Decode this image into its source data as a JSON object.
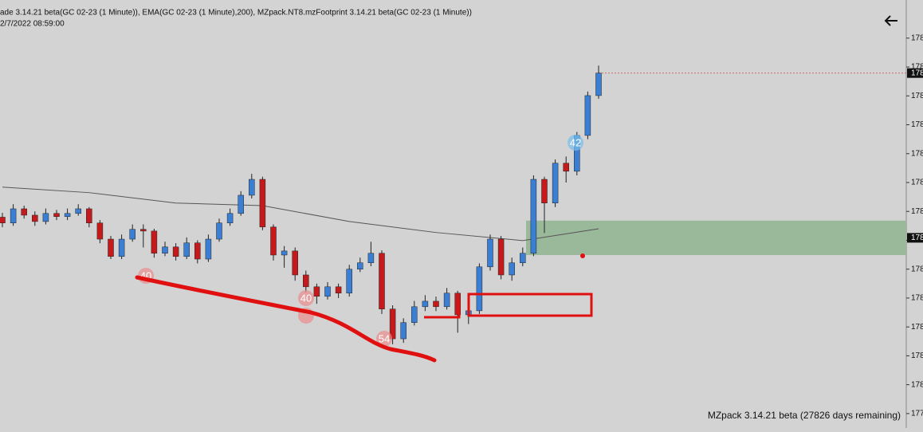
{
  "chart_data": {
    "type": "candlestick",
    "header": "ade 3.14.21 beta(GC 02-23 (1 Minute)), EMA(GC 02-23 (1 Minute),200), MZpack.NT8.mzFootprint 3.14.21 beta(GC 02-23 (1 Minute))",
    "timestamp": "2/7/2022 08:59:00",
    "footer": "MZpack 3.14.21 beta  (27826 days remaining)",
    "up_color": "#3b7fd4",
    "down_color": "#c41a1c",
    "open": [
      1785.8,
      1785.6,
      1786.09,
      1785.87,
      1785.65,
      1785.93,
      1785.82,
      1785.93,
      1786.09,
      1785.6,
      1785.04,
      1784.44,
      1785.04,
      1785.38,
      1785.32,
      1784.55,
      1784.77,
      1784.44,
      1784.91,
      1784.35,
      1785.04,
      1785.6,
      1785.93,
      1786.56,
      1787.11,
      1785.46,
      1784.49,
      1784.63,
      1783.8,
      1783.39,
      1783.06,
      1783.39,
      1783.17,
      1784.0,
      1784.22,
      1784.55,
      1782.62,
      1781.59,
      1782.15,
      1782.7,
      1782.89,
      1782.7,
      1783.17,
      1782.42,
      1782.56,
      1784.08,
      1785.04,
      1783.8,
      1784.22,
      1784.55,
      1787.11,
      1786.29,
      1787.67,
      1787.39,
      1788.63,
      1790.01
    ],
    "high": [
      1785.95,
      1786.25,
      1786.2,
      1786.0,
      1786.1,
      1786.05,
      1786.1,
      1786.25,
      1786.15,
      1785.7,
      1785.15,
      1785.2,
      1785.55,
      1785.55,
      1785.4,
      1784.95,
      1784.9,
      1785.1,
      1785.0,
      1785.2,
      1785.75,
      1786.1,
      1786.7,
      1787.3,
      1787.2,
      1785.55,
      1784.8,
      1784.75,
      1783.95,
      1783.5,
      1783.55,
      1783.5,
      1784.15,
      1784.4,
      1784.95,
      1784.65,
      1782.75,
      1782.3,
      1782.9,
      1783.1,
      1783.05,
      1783.35,
      1783.25,
      1782.75,
      1784.2,
      1785.2,
      1785.15,
      1784.4,
      1784.75,
      1787.25,
      1787.2,
      1787.8,
      1787.9,
      1788.75,
      1790.15,
      1791.05
    ],
    "low": [
      1785.45,
      1785.5,
      1785.75,
      1785.5,
      1785.55,
      1785.7,
      1785.7,
      1785.85,
      1785.45,
      1784.9,
      1784.35,
      1784.35,
      1784.95,
      1784.75,
      1784.4,
      1784.45,
      1784.3,
      1784.35,
      1784.2,
      1784.25,
      1784.95,
      1785.5,
      1785.85,
      1786.45,
      1785.35,
      1784.3,
      1784.05,
      1783.6,
      1783.2,
      1782.8,
      1782.95,
      1783.0,
      1783.05,
      1783.9,
      1784.1,
      1782.45,
      1781.4,
      1781.45,
      1782.05,
      1782.55,
      1782.55,
      1782.6,
      1781.8,
      1782.1,
      1782.45,
      1783.95,
      1783.65,
      1783.6,
      1784.1,
      1784.45,
      1785.25,
      1786.15,
      1787.0,
      1787.25,
      1788.5,
      1789.9
    ],
    "close": [
      1785.6,
      1786.09,
      1785.87,
      1785.65,
      1785.93,
      1785.82,
      1785.93,
      1786.09,
      1785.6,
      1785.04,
      1784.44,
      1785.04,
      1785.38,
      1785.32,
      1784.55,
      1784.77,
      1784.44,
      1784.91,
      1784.35,
      1785.04,
      1785.6,
      1785.93,
      1786.56,
      1787.11,
      1785.46,
      1784.49,
      1784.63,
      1783.8,
      1783.39,
      1783.06,
      1783.39,
      1783.17,
      1784.0,
      1784.22,
      1784.55,
      1782.62,
      1781.59,
      1782.15,
      1782.7,
      1782.89,
      1782.7,
      1783.17,
      1782.42,
      1782.56,
      1784.08,
      1785.04,
      1783.8,
      1784.22,
      1784.55,
      1787.11,
      1786.29,
      1787.67,
      1787.39,
      1788.63,
      1790.01,
      1790.79
    ],
    "ema": {
      "color": "#555555",
      "x": [
        0,
        8,
        16,
        24,
        32,
        40,
        48,
        55
      ],
      "values": [
        1786.84,
        1786.65,
        1786.29,
        1786.2,
        1785.65,
        1785.27,
        1784.99,
        1785.4
      ]
    },
    "zone": {
      "color": "#9ab89a",
      "from": 1784.49,
      "to": 1785.68
    },
    "last_price": 1790.79,
    "last_price_label": "178",
    "zone_label": "178",
    "annotations": [
      "40",
      "40",
      "54",
      "42"
    ],
    "ylim": [
      1778.5,
      1793.32
    ],
    "yticks": [
      {
        "value": 1792,
        "label": "178"
      },
      {
        "value": 1791,
        "label": "178"
      },
      {
        "value": 1790,
        "label": "178"
      },
      {
        "value": 1789,
        "label": "178"
      },
      {
        "value": 1788,
        "label": "178"
      },
      {
        "value": 1787,
        "label": "178"
      },
      {
        "value": 1786,
        "label": "178"
      },
      {
        "value": 1785,
        "label": "178"
      },
      {
        "value": 1784,
        "label": "178"
      },
      {
        "value": 1783,
        "label": "178"
      },
      {
        "value": 1782,
        "label": "178"
      },
      {
        "value": 1781,
        "label": "178"
      },
      {
        "value": 1780,
        "label": "178"
      },
      {
        "value": 1779,
        "label": "177"
      }
    ]
  }
}
